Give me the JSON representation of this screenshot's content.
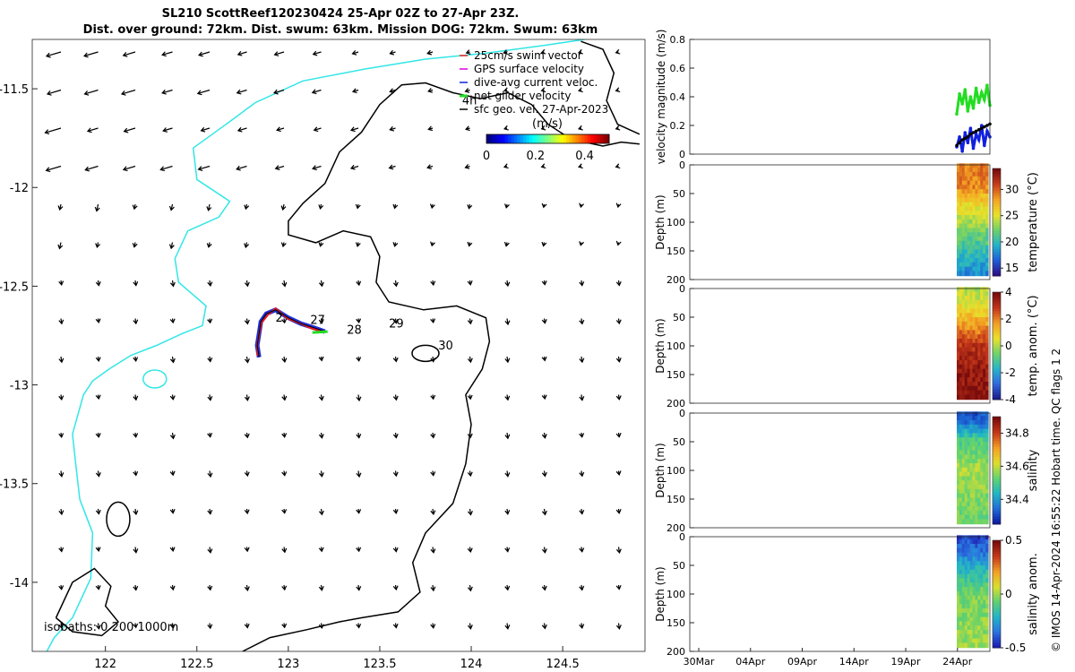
{
  "title_line1": "SL210 ScottReef120230424 25-Apr 02Z to 27-Apr 23Z.",
  "title_line2": "Dist. over ground: 72km. Dist. swum: 63km. Mission DOG: 72km. Swum: 63km",
  "credit": "© IMOS 14-Apr-2024 16:55:22 Hobart time. QC flags 1  2",
  "colors": {
    "coast": "#33e6e6",
    "swim_vector": "#e8251d",
    "gps_velocity": "#e000e0",
    "dive_avg": "#1020e0",
    "net_velocity": "#22dd22",
    "track_red": "#e41a1c",
    "track_blue": "#1f2fd6"
  },
  "chart_data": [
    {
      "type": "map",
      "name": "glider track and surface velocity map",
      "xlabel": "",
      "ylabel": "",
      "xlim": [
        121.6,
        124.95
      ],
      "ylim": [
        -14.35,
        -11.25
      ],
      "xticks": [
        122,
        122.5,
        123,
        123.5,
        124,
        124.5
      ],
      "xtick_labels": [
        "122",
        "122.5",
        "123",
        "123.5",
        "124",
        "124.5"
      ],
      "yticks": [
        -11.5,
        -12,
        -12.5,
        -13,
        -13.5,
        -14
      ],
      "ytick_labels": [
        "-11.5",
        "-12",
        "-12.5",
        "-13",
        "-13.5",
        "-14"
      ],
      "legend": [
        {
          "label": "25cm/s swim vector",
          "color_key": "swim_vector"
        },
        {
          "label": "GPS surface velocity",
          "color_key": "gps_velocity"
        },
        {
          "label": "dive-avg current veloc.",
          "color_key": "dive_avg"
        },
        {
          "label": "net glider velocity",
          "color_key": "net_velocity"
        },
        {
          "label": "sfc geo. vel. 27-Apr-2023",
          "color_key": "black"
        }
      ],
      "legend_position": "top-right",
      "colorbar": {
        "label": "(m/s)",
        "min": 0,
        "max": 0.5,
        "ticks": [
          0,
          0.2,
          0.4
        ],
        "tick_labels": [
          "0",
          "0.2",
          "0.4"
        ]
      },
      "day_labels": [
        {
          "label": "4h",
          "lon": 123.95,
          "lat": -11.58
        },
        {
          "label": "2",
          "lon": 122.93,
          "lat": -12.68
        },
        {
          "label": "27",
          "lon": 123.12,
          "lat": -12.69
        },
        {
          "label": "28",
          "lon": 123.32,
          "lat": -12.74
        },
        {
          "label": "29",
          "lon": 123.55,
          "lat": -12.71
        },
        {
          "label": "30",
          "lon": 123.82,
          "lat": -12.82
        }
      ],
      "isobath_label": "isobaths: 0   200  1000m",
      "track": [
        [
          123.2,
          -12.73
        ],
        [
          123.14,
          -12.71
        ],
        [
          123.07,
          -12.69
        ],
        [
          123.0,
          -12.66
        ],
        [
          122.93,
          -12.62
        ],
        [
          122.88,
          -12.64
        ],
        [
          122.85,
          -12.68
        ],
        [
          122.84,
          -12.74
        ],
        [
          122.83,
          -12.8
        ],
        [
          122.84,
          -12.86
        ]
      ]
    },
    {
      "type": "scatter",
      "name": "velocity magnitude",
      "ylabel": "velocity magnitude (m/s)",
      "ylim": [
        0,
        0.8
      ],
      "yticks": [
        0,
        0.2,
        0.4,
        0.6,
        0.8
      ],
      "ytick_labels": [
        "0",
        "0.2",
        "0.4",
        "0.6",
        "0.8"
      ],
      "x_range": [
        "30Mar",
        "28Apr"
      ],
      "series": [
        {
          "name": "net glider velocity",
          "color_key": "net_velocity",
          "values": [
            0.28,
            0.42,
            0.35,
            0.45,
            0.3,
            0.4,
            0.32,
            0.46,
            0.36,
            0.43,
            0.38,
            0.48,
            0.34
          ]
        },
        {
          "name": "dive-avg current veloc.",
          "color_key": "dive_avg",
          "values": [
            0.05,
            0.12,
            0.02,
            0.15,
            0.08,
            0.18,
            0.04,
            0.14,
            0.1,
            0.2,
            0.06,
            0.16,
            0.12
          ]
        },
        {
          "name": "sfc geo. vel.",
          "color_key": "black",
          "values": [
            0.06,
            0.08,
            0.1,
            0.11,
            0.12,
            0.14,
            0.15,
            0.16,
            0.17,
            0.18,
            0.19,
            0.2,
            0.21
          ]
        }
      ]
    },
    {
      "type": "heatmap",
      "name": "temperature section",
      "ylabel": "Depth (m)",
      "ylim": [
        200,
        0
      ],
      "yticks": [
        0,
        50,
        100,
        150,
        200
      ],
      "ytick_labels": [
        "0",
        "50",
        "100",
        "150",
        "200"
      ],
      "colorbar_label": "temperature (°C)",
      "clim": [
        13.5,
        34
      ],
      "colorbar_ticks": [
        15,
        20,
        25,
        30
      ],
      "colorbar_tick_labels": [
        "15",
        "20",
        "25",
        "30"
      ],
      "depth_profile": [
        {
          "depth": 0,
          "value": 29.5
        },
        {
          "depth": 40,
          "value": 29
        },
        {
          "depth": 70,
          "value": 26
        },
        {
          "depth": 110,
          "value": 23
        },
        {
          "depth": 150,
          "value": 20.5
        },
        {
          "depth": 190,
          "value": 18
        }
      ]
    },
    {
      "type": "heatmap",
      "name": "temperature anomaly section",
      "ylabel": "Depth (m)",
      "ylim": [
        200,
        0
      ],
      "yticks": [
        0,
        50,
        100,
        150,
        200
      ],
      "ytick_labels": [
        "0",
        "50",
        "100",
        "150",
        "200"
      ],
      "colorbar_label": "temp. anom. (°C)",
      "clim": [
        -4,
        4
      ],
      "colorbar_ticks": [
        -4,
        -2,
        0,
        2,
        4
      ],
      "colorbar_tick_labels": [
        "-4",
        "-2",
        "0",
        "2",
        "4"
      ],
      "depth_profile": [
        {
          "depth": 0,
          "value": 0
        },
        {
          "depth": 30,
          "value": 0.5
        },
        {
          "depth": 60,
          "value": 1.5
        },
        {
          "depth": 100,
          "value": 3
        },
        {
          "depth": 150,
          "value": 3.6
        },
        {
          "depth": 190,
          "value": 3.8
        }
      ]
    },
    {
      "type": "heatmap",
      "name": "salinity section",
      "ylabel": "Depth (m)",
      "ylim": [
        200,
        0
      ],
      "yticks": [
        0,
        50,
        100,
        150,
        200
      ],
      "ytick_labels": [
        "0",
        "50",
        "100",
        "150",
        "200"
      ],
      "colorbar_label": "salinity",
      "clim": [
        34.25,
        34.9
      ],
      "colorbar_ticks": [
        34.4,
        34.6,
        34.8
      ],
      "colorbar_tick_labels": [
        "34.4",
        "34.6",
        "34.8"
      ],
      "depth_profile": [
        {
          "depth": 0,
          "value": 34.3
        },
        {
          "depth": 20,
          "value": 34.35
        },
        {
          "depth": 50,
          "value": 34.5
        },
        {
          "depth": 100,
          "value": 34.58
        },
        {
          "depth": 150,
          "value": 34.55
        },
        {
          "depth": 190,
          "value": 34.53
        }
      ]
    },
    {
      "type": "heatmap",
      "name": "salinity anomaly section",
      "ylabel": "Depth (m)",
      "ylim": [
        200,
        0
      ],
      "yticks": [
        0,
        50,
        100,
        150,
        200
      ],
      "ytick_labels": [
        "0",
        "50",
        "100",
        "150",
        "200"
      ],
      "colorbar_label": "salinity anom.",
      "clim": [
        -0.5,
        0.5
      ],
      "colorbar_ticks": [
        -0.5,
        0,
        0.5
      ],
      "colorbar_tick_labels": [
        "-0.5",
        "0",
        "0.5"
      ],
      "xticks": [
        "30Mar",
        "04Apr",
        "09Apr",
        "14Apr",
        "19Apr",
        "24Apr"
      ],
      "depth_profile": [
        {
          "depth": 0,
          "value": -0.45
        },
        {
          "depth": 30,
          "value": -0.35
        },
        {
          "depth": 60,
          "value": -0.2
        },
        {
          "depth": 100,
          "value": -0.05
        },
        {
          "depth": 150,
          "value": -0.02
        },
        {
          "depth": 190,
          "value": 0.0
        }
      ]
    }
  ]
}
